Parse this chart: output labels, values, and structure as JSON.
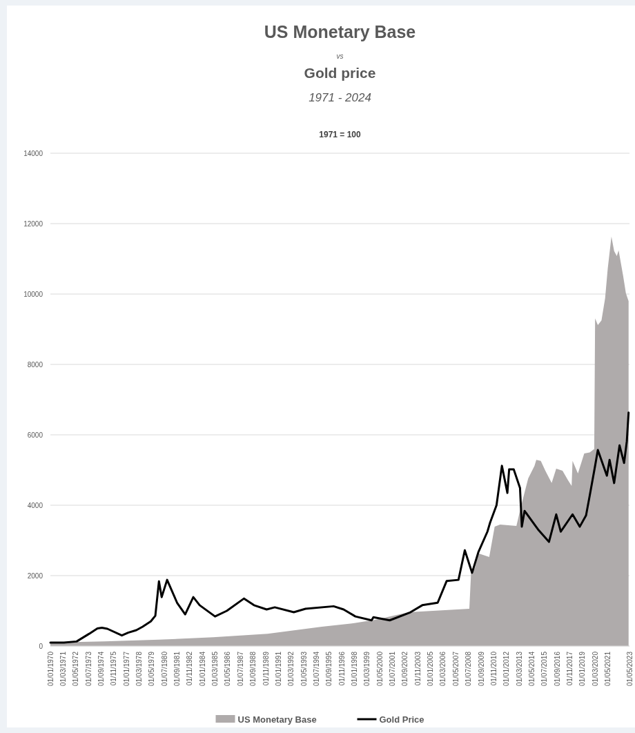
{
  "chart_data": {
    "type": "area",
    "title": "US Monetary Base\nvs\nGold price",
    "subtitle": "1971 - 2024",
    "annotations": [
      "1971 = 100"
    ],
    "series": [
      {
        "name": "US Monetary Base",
        "color": "#afabab",
        "x": [
          "1970-01",
          "1975-01",
          "1980-01",
          "1985-01",
          "1990-01",
          "1995-01",
          "1998-01",
          "2000-01",
          "2003-01",
          "2008-08",
          "2008-10",
          "2009-02",
          "2009-06",
          "2010-06",
          "2010-12",
          "2011-06",
          "2012-12",
          "2013-06",
          "2014-01",
          "2014-08",
          "2014-10",
          "2015-03",
          "2015-08",
          "2016-03",
          "2016-08",
          "2017-03",
          "2017-09",
          "2018-01",
          "2018-02",
          "2018-08",
          "2019-03",
          "2019-09",
          "2020-02",
          "2020-03",
          "2020-06",
          "2020-10",
          "2021-02",
          "2021-05",
          "2021-09",
          "2021-12",
          "2022-03",
          "2022-05",
          "2022-10",
          "2023-01",
          "2023-04"
        ],
        "values": [
          100,
          130,
          180,
          250,
          350,
          550,
          650,
          750,
          960,
          1060,
          2140,
          2210,
          2630,
          2530,
          3390,
          3450,
          3410,
          4060,
          4760,
          5120,
          5290,
          5260,
          4980,
          4630,
          5040,
          4980,
          4710,
          4550,
          5260,
          4900,
          5470,
          5500,
          5600,
          9310,
          9120,
          9250,
          9880,
          10730,
          11630,
          11220,
          11080,
          11240,
          10510,
          10020,
          9800
        ]
      },
      {
        "name": "Gold Price",
        "type": "line",
        "color": "#000000",
        "x": [
          "1970-01",
          "1971-04",
          "1972-06",
          "1973-08",
          "1974-05",
          "1974-10",
          "1975-04",
          "1976-08",
          "1977-03",
          "1977-12",
          "1978-07",
          "1979-04",
          "1979-09",
          "1980-01",
          "1980-04",
          "1980-10",
          "1981-09",
          "1982-06",
          "1983-03",
          "1983-10",
          "1985-03",
          "1986-04",
          "1987-11",
          "1988-10",
          "1989-12",
          "1990-09",
          "1992-06",
          "1993-07",
          "1996-02",
          "1997-01",
          "1998-02",
          "1999-08",
          "1999-10",
          "2001-04",
          "2003-03",
          "2004-04",
          "2005-09",
          "2006-07",
          "2007-08",
          "2008-03",
          "2008-11",
          "2009-06",
          "2010-04",
          "2010-07",
          "2011-02",
          "2011-08",
          "2012-02",
          "2012-04",
          "2012-09",
          "2013-04",
          "2013-06",
          "2013-09",
          "2014-12",
          "2015-12",
          "2016-08",
          "2017-01",
          "2018-02",
          "2018-10",
          "2019-05",
          "2019-09",
          "2020-03",
          "2020-06",
          "2021-04",
          "2021-07",
          "2021-12",
          "2022-06",
          "2022-11",
          "2023-02",
          "2023-04"
        ],
        "values": [
          100,
          100,
          130,
          350,
          500,
          520,
          490,
          300,
          380,
          450,
          550,
          700,
          860,
          1840,
          1390,
          1880,
          1230,
          900,
          1390,
          1160,
          840,
          1000,
          1350,
          1160,
          1040,
          1100,
          960,
          1060,
          1130,
          1040,
          840,
          730,
          820,
          730,
          960,
          1160,
          1230,
          1850,
          1880,
          2720,
          2080,
          2670,
          3250,
          3510,
          4000,
          5120,
          4350,
          5020,
          5020,
          4490,
          3390,
          3840,
          3310,
          2960,
          3740,
          3250,
          3740,
          3390,
          3710,
          4270,
          5120,
          5570,
          4840,
          5290,
          4630,
          5700,
          5200,
          5820,
          6630
        ]
      }
    ],
    "xlim": [
      "1970-01",
      "2023-05"
    ],
    "xticks": [
      {
        "value": "1970-01",
        "label": "01/01/1970"
      },
      {
        "value": "1971-03",
        "label": "01/03/1971"
      },
      {
        "value": "1972-05",
        "label": "01/05/1972"
      },
      {
        "value": "1973-07",
        "label": "01/07/1973"
      },
      {
        "value": "1974-09",
        "label": "01/09/1974"
      },
      {
        "value": "1975-11",
        "label": "01/11/1975"
      },
      {
        "value": "1977-01",
        "label": "01/01/1977"
      },
      {
        "value": "1978-03",
        "label": "01/03/1978"
      },
      {
        "value": "1979-05",
        "label": "01/05/1979"
      },
      {
        "value": "1980-07",
        "label": "01/07/1980"
      },
      {
        "value": "1981-09",
        "label": "01/09/1981"
      },
      {
        "value": "1982-11",
        "label": "01/11/1982"
      },
      {
        "value": "1984-01",
        "label": "01/01/1984"
      },
      {
        "value": "1985-03",
        "label": "01/03/1985"
      },
      {
        "value": "1986-05",
        "label": "01/05/1986"
      },
      {
        "value": "1987-07",
        "label": "01/07/1987"
      },
      {
        "value": "1988-09",
        "label": "01/09/1988"
      },
      {
        "value": "1989-11",
        "label": "01/11/1989"
      },
      {
        "value": "1991-01",
        "label": "01/01/1991"
      },
      {
        "value": "1992-03",
        "label": "01/03/1992"
      },
      {
        "value": "1993-05",
        "label": "01/05/1993"
      },
      {
        "value": "1994-07",
        "label": "01/07/1994"
      },
      {
        "value": "1995-09",
        "label": "01/09/1995"
      },
      {
        "value": "1996-11",
        "label": "01/11/1996"
      },
      {
        "value": "1998-01",
        "label": "01/01/1998"
      },
      {
        "value": "1999-03",
        "label": "01/03/1999"
      },
      {
        "value": "2000-05",
        "label": "01/05/2000"
      },
      {
        "value": "2001-07",
        "label": "01/07/2001"
      },
      {
        "value": "2002-09",
        "label": "01/09/2002"
      },
      {
        "value": "2003-11",
        "label": "01/11/2003"
      },
      {
        "value": "2005-01",
        "label": "01/01/2005"
      },
      {
        "value": "2006-03",
        "label": "01/03/2006"
      },
      {
        "value": "2007-05",
        "label": "01/05/2007"
      },
      {
        "value": "2008-07",
        "label": "01/07/2008"
      },
      {
        "value": "2009-09",
        "label": "01/09/2009"
      },
      {
        "value": "2010-11",
        "label": "01/11/2010"
      },
      {
        "value": "2012-01",
        "label": "01/01/2012"
      },
      {
        "value": "2013-03",
        "label": "01/03/2013"
      },
      {
        "value": "2014-05",
        "label": "01/05/2014"
      },
      {
        "value": "2015-07",
        "label": "01/07/2015"
      },
      {
        "value": "2016-09",
        "label": "01/09/2016"
      },
      {
        "value": "2017-11",
        "label": "01/11/2017"
      },
      {
        "value": "2019-01",
        "label": "01/01/2019"
      },
      {
        "value": "2020-03",
        "label": "01/03/2020"
      },
      {
        "value": "2021-05",
        "label": "01/05/2021"
      },
      {
        "value": "2023-05",
        "label": "01/05/2023"
      }
    ],
    "ylim": [
      0,
      14000
    ],
    "yticks": [
      0,
      2000,
      4000,
      6000,
      8000,
      10000,
      12000,
      14000
    ],
    "grid": "y",
    "legend": "bottom",
    "line_style": "solid"
  }
}
